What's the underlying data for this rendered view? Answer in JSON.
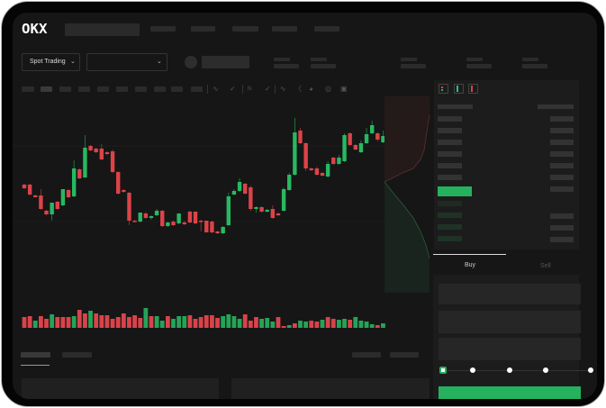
{
  "header": {
    "logo": "OKX",
    "search_placeholder": "",
    "nav_items": [
      "",
      "",
      "",
      "",
      ""
    ]
  },
  "market_bar": {
    "mode_dropdown": "Spot Trading",
    "pair_dropdown": ""
  },
  "toolbar": {
    "icons": [
      "line-tools-icon",
      "indicator-icon",
      "fx-icon",
      "wave-icon",
      "ruler-icon",
      "camera-icon",
      "target-icon",
      "fullscreen-icon"
    ]
  },
  "orderbook": {
    "view_icons": [
      "both-sides-icon",
      "bids-only-icon",
      "asks-only-icon"
    ],
    "accent_buy": "#25b15e",
    "accent_sell": "#d9434a"
  },
  "order_form": {
    "tabs": [
      "Buy",
      "Sell"
    ],
    "active_tab": "Buy",
    "slider_percent": 0,
    "slider_stops": [
      0,
      25,
      50,
      75,
      100
    ]
  },
  "colors": {
    "up": "#28b862",
    "down": "#dc4349",
    "background": "#161616"
  },
  "chart_data": {
    "type": "candlestick",
    "candles": [
      [
        97,
        93,
        98,
        92
      ],
      [
        97,
        86,
        98,
        85
      ],
      [
        85,
        83,
        86,
        83
      ],
      [
        85,
        70,
        92,
        69
      ],
      [
        68,
        64,
        69,
        63
      ],
      [
        64,
        77,
        77,
        57
      ],
      [
        78,
        70,
        79,
        69
      ],
      [
        74,
        92,
        92,
        73
      ],
      [
        91,
        83,
        92,
        82
      ],
      [
        84,
        115,
        124,
        83
      ],
      [
        114,
        104,
        115,
        103
      ],
      [
        105,
        138,
        152,
        104
      ],
      [
        140,
        135,
        141,
        134
      ],
      [
        137,
        133,
        138,
        132
      ],
      [
        137,
        125,
        142,
        124
      ],
      [
        133,
        131,
        134,
        130
      ],
      [
        134,
        111,
        136,
        110
      ],
      [
        111,
        87,
        112,
        86
      ],
      [
        91,
        89,
        92,
        88
      ],
      [
        88,
        57,
        89,
        52
      ],
      [
        57,
        56,
        58,
        55
      ],
      [
        56,
        66,
        66,
        55
      ],
      [
        65,
        60,
        67,
        59
      ],
      [
        60,
        62,
        63,
        58
      ],
      [
        63,
        68,
        70,
        62
      ],
      [
        68,
        51,
        69,
        50
      ],
      [
        51,
        55,
        56,
        50
      ],
      [
        56,
        52,
        57,
        51
      ],
      [
        54,
        65,
        65,
        53
      ],
      [
        55,
        53,
        57,
        52
      ],
      [
        67,
        55,
        68,
        54
      ],
      [
        67,
        54,
        67,
        53
      ],
      [
        57,
        56,
        58,
        45
      ],
      [
        57,
        44,
        57,
        44
      ],
      [
        56,
        44,
        57,
        43
      ],
      [
        45,
        43,
        46,
        42
      ],
      [
        43,
        50,
        51,
        42
      ],
      [
        52,
        84,
        88,
        51
      ],
      [
        86,
        90,
        92,
        85
      ],
      [
        90,
        100,
        104,
        89
      ],
      [
        98,
        87,
        99,
        86
      ],
      [
        94,
        70,
        96,
        68
      ],
      [
        70,
        72,
        73,
        66
      ],
      [
        72,
        67,
        73,
        66
      ],
      [
        67,
        69,
        70,
        66
      ],
      [
        70,
        60,
        74,
        59
      ],
      [
        65,
        63,
        66,
        62
      ],
      [
        68,
        92,
        94,
        67
      ],
      [
        91,
        108,
        110,
        90
      ],
      [
        108,
        155,
        171,
        107
      ],
      [
        157,
        143,
        160,
        142
      ],
      [
        143,
        115,
        144,
        112
      ],
      [
        115,
        113,
        116,
        112
      ],
      [
        115,
        108,
        117,
        107
      ],
      [
        110,
        107,
        111,
        106
      ],
      [
        106,
        120,
        123,
        105
      ],
      [
        127,
        120,
        128,
        119
      ],
      [
        120,
        127,
        130,
        119
      ],
      [
        123,
        152,
        154,
        122
      ],
      [
        154,
        141,
        155,
        140
      ],
      [
        141,
        136,
        142,
        135
      ],
      [
        133,
        143,
        146,
        132
      ],
      [
        143,
        153,
        160,
        142
      ],
      [
        154,
        163,
        168,
        153
      ],
      [
        154,
        147,
        155,
        145
      ],
      [
        144,
        151,
        157,
        143
      ]
    ],
    "candle_fields": [
      "open",
      "close",
      "high",
      "low"
    ],
    "volume": [
      [
        12,
        "down"
      ],
      [
        13,
        "down"
      ],
      [
        8,
        "up"
      ],
      [
        13,
        "down"
      ],
      [
        10,
        "down"
      ],
      [
        15,
        "up"
      ],
      [
        12,
        "down"
      ],
      [
        12,
        "down"
      ],
      [
        12,
        "down"
      ],
      [
        13,
        "up"
      ],
      [
        20,
        "down"
      ],
      [
        16,
        "down"
      ],
      [
        19,
        "up"
      ],
      [
        16,
        "down"
      ],
      [
        14,
        "down"
      ],
      [
        14,
        "down"
      ],
      [
        10,
        "down"
      ],
      [
        12,
        "down"
      ],
      [
        16,
        "down"
      ],
      [
        12,
        "down"
      ],
      [
        14,
        "down"
      ],
      [
        11,
        "down"
      ],
      [
        22,
        "up"
      ],
      [
        13,
        "down"
      ],
      [
        13,
        "up"
      ],
      [
        8,
        "up"
      ],
      [
        13,
        "down"
      ],
      [
        10,
        "up"
      ],
      [
        13,
        "up"
      ],
      [
        13,
        "up"
      ],
      [
        14,
        "down"
      ],
      [
        10,
        "down"
      ],
      [
        12,
        "down"
      ],
      [
        14,
        "down"
      ],
      [
        14,
        "down"
      ],
      [
        11,
        "down"
      ],
      [
        13,
        "up"
      ],
      [
        15,
        "up"
      ],
      [
        13,
        "up"
      ],
      [
        10,
        "up"
      ],
      [
        15,
        "down"
      ],
      [
        8,
        "down"
      ],
      [
        12,
        "down"
      ],
      [
        10,
        "up"
      ],
      [
        11,
        "up"
      ],
      [
        7,
        "up"
      ],
      [
        12,
        "down"
      ],
      [
        2,
        "down"
      ],
      [
        3,
        "up"
      ],
      [
        5,
        "down"
      ],
      [
        8,
        "up"
      ],
      [
        7,
        "up"
      ],
      [
        8,
        "down"
      ],
      [
        7,
        "down"
      ],
      [
        9,
        "up"
      ],
      [
        12,
        "down"
      ],
      [
        10,
        "down"
      ],
      [
        9,
        "up"
      ],
      [
        10,
        "up"
      ],
      [
        9,
        "down"
      ],
      [
        12,
        "up"
      ],
      [
        8,
        "up"
      ],
      [
        7,
        "up"
      ],
      [
        4,
        "up"
      ],
      [
        3,
        "down"
      ],
      [
        5,
        "up"
      ]
    ]
  }
}
